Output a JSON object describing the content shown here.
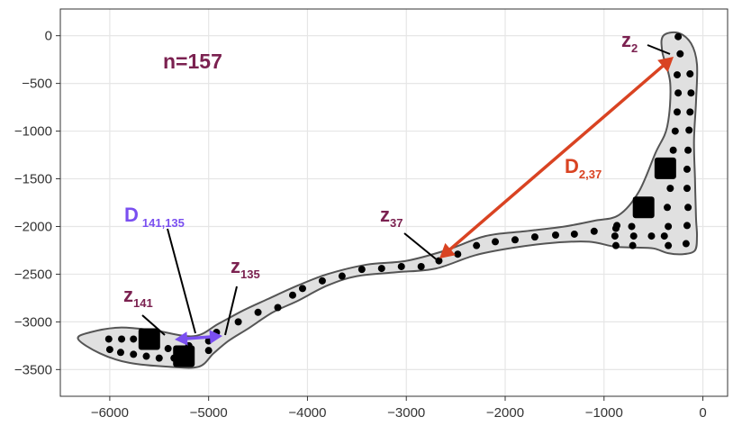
{
  "chart_data": {
    "type": "scatter",
    "title": "",
    "xlabel": "",
    "ylabel": "",
    "xlim": [
      -6500,
      250
    ],
    "ylim": [
      -3780,
      280
    ],
    "grid": true,
    "xticks": [
      -6000,
      -5000,
      -4000,
      -3000,
      -2000,
      -1000,
      0
    ],
    "yticks": [
      0,
      -500,
      -1000,
      -1500,
      -2000,
      -2500,
      -3000,
      -3500
    ],
    "x_tick_labels": [
      "−6000",
      "−5000",
      "−4000",
      "−3000",
      "−2000",
      "−1000",
      "0"
    ],
    "y_tick_labels": [
      "0",
      "−500",
      "−1000",
      "−1500",
      "−2000",
      "−2500",
      "−3000",
      "−3500"
    ],
    "series": [
      {
        "points": [
          [
            -250,
            -10
          ],
          [
            -230,
            -190
          ],
          [
            -130,
            -400
          ],
          [
            -260,
            -410
          ],
          [
            -120,
            -600
          ],
          [
            -250,
            -600
          ],
          [
            -130,
            -800
          ],
          [
            -260,
            -800
          ],
          [
            -140,
            -990
          ],
          [
            -280,
            -1000
          ],
          [
            -150,
            -1200
          ],
          [
            -300,
            -1200
          ],
          [
            -160,
            -1400
          ],
          [
            -320,
            -1400
          ],
          [
            -160,
            -1600
          ],
          [
            -330,
            -1600
          ],
          [
            -150,
            -1800
          ],
          [
            -360,
            -1800
          ],
          [
            -160,
            -1990
          ],
          [
            -350,
            -2000
          ],
          [
            -170,
            -2180
          ],
          [
            -350,
            -2200
          ],
          [
            -390,
            -2100
          ],
          [
            -520,
            -2100
          ],
          [
            -720,
            -2000
          ],
          [
            -870,
            -1990
          ],
          [
            -890,
            -2100
          ],
          [
            -700,
            -2100
          ],
          [
            -710,
            -2200
          ],
          [
            -880,
            -2200
          ],
          [
            -880,
            -2020
          ],
          [
            -1100,
            -2050
          ],
          [
            -1300,
            -2080
          ],
          [
            -1490,
            -2090
          ],
          [
            -1700,
            -2110
          ],
          [
            -1900,
            -2140
          ],
          [
            -2100,
            -2160
          ],
          [
            -2290,
            -2200
          ],
          [
            -2480,
            -2290
          ],
          [
            -2670,
            -2360
          ],
          [
            -2850,
            -2420
          ],
          [
            -3050,
            -2420
          ],
          [
            -3250,
            -2440
          ],
          [
            -3450,
            -2450
          ],
          [
            -3650,
            -2520
          ],
          [
            -3850,
            -2570
          ],
          [
            -4050,
            -2650
          ],
          [
            -4150,
            -2720
          ],
          [
            -4300,
            -2850
          ],
          [
            -4500,
            -2900
          ],
          [
            -4700,
            -3000
          ],
          [
            -4920,
            -3110
          ],
          [
            -5000,
            -3200
          ],
          [
            -5000,
            -3300
          ],
          [
            -5200,
            -3250
          ],
          [
            -5220,
            -3430
          ],
          [
            -5350,
            -3380
          ],
          [
            -5410,
            -3280
          ],
          [
            -5500,
            -3380
          ],
          [
            -5630,
            -3360
          ],
          [
            -5760,
            -3340
          ],
          [
            -5890,
            -3320
          ],
          [
            -6000,
            -3290
          ],
          [
            -6010,
            -3180
          ],
          [
            -5880,
            -3180
          ],
          [
            -5760,
            -3180
          ],
          [
            -5630,
            -3160
          ]
        ]
      }
    ],
    "highlighted_points": [
      [
        -380,
        -1390
      ],
      [
        -600,
        -1800
      ],
      [
        -5600,
        -3180
      ],
      [
        -5250,
        -3360
      ]
    ],
    "annotations": {
      "n_label": "n=157",
      "z2": {
        "main": "z",
        "sub": "2"
      },
      "z37": {
        "main": "z",
        "sub": "37"
      },
      "z135": {
        "main": "z",
        "sub": "135"
      },
      "z141": {
        "main": "z",
        "sub": "141"
      },
      "d237": {
        "main": "D",
        "sub": "2,37"
      },
      "d141": {
        "main": "D",
        "sub": "141,135"
      }
    },
    "colors": {
      "points": "#000000",
      "hull_fill": "#e0e0e0",
      "hull_stroke": "#555555",
      "label_color": "#7b2150",
      "d237_color": "#d94322",
      "d141_color": "#7a4ff0",
      "grid": "#e6e6e6"
    }
  }
}
